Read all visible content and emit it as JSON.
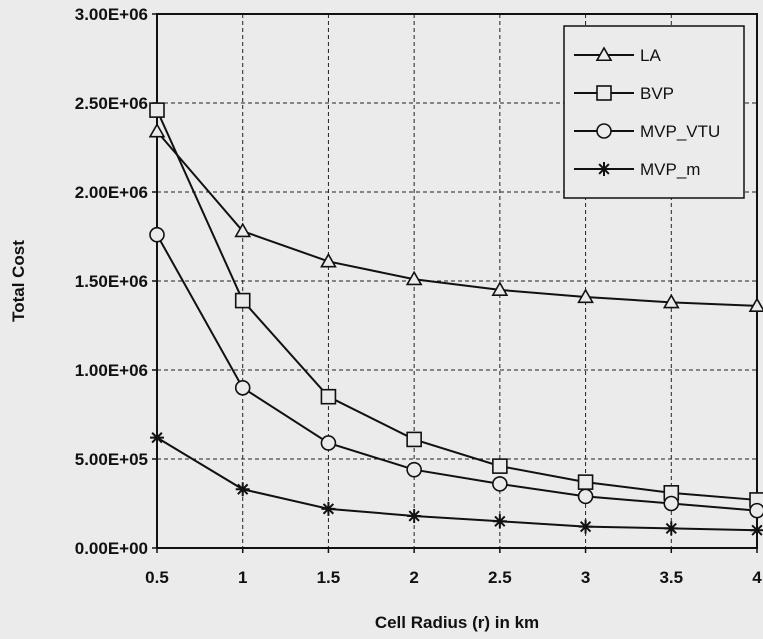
{
  "chart_data": {
    "type": "line",
    "title": "",
    "xlabel": "Cell Radius (r) in km",
    "ylabel": "Total Cost",
    "x": [
      0.5,
      1,
      1.5,
      2,
      2.5,
      3,
      3.5,
      4
    ],
    "x_tick_labels": [
      "0.5",
      "1",
      "1.5",
      "2",
      "2.5",
      "3",
      "3.5",
      "4"
    ],
    "xlim": [
      0.5,
      4
    ],
    "ylim": [
      0,
      3000000
    ],
    "y_ticks": [
      0,
      500000,
      1000000,
      1500000,
      2000000,
      2500000,
      3000000
    ],
    "y_tick_labels": [
      "0.00E+00",
      "5.00E+05",
      "1.00E+06",
      "1.50E+06",
      "2.00E+06",
      "2.50E+06",
      "3.00E+06"
    ],
    "grid": true,
    "grid_style": "dashed",
    "legend_position": "top-right",
    "series": [
      {
        "name": "LA",
        "marker": "triangle",
        "values": [
          2340000,
          1780000,
          1610000,
          1510000,
          1450000,
          1410000,
          1380000,
          1360000
        ]
      },
      {
        "name": "BVP",
        "marker": "square",
        "values": [
          2460000,
          1390000,
          850000,
          610000,
          460000,
          370000,
          310000,
          270000
        ]
      },
      {
        "name": "MVP_VTU",
        "marker": "circle",
        "values": [
          1760000,
          900000,
          590000,
          440000,
          360000,
          290000,
          250000,
          210000
        ]
      },
      {
        "name": "MVP_m",
        "marker": "asterisk",
        "values": [
          620000,
          330000,
          220000,
          180000,
          150000,
          120000,
          110000,
          100000
        ]
      }
    ]
  }
}
